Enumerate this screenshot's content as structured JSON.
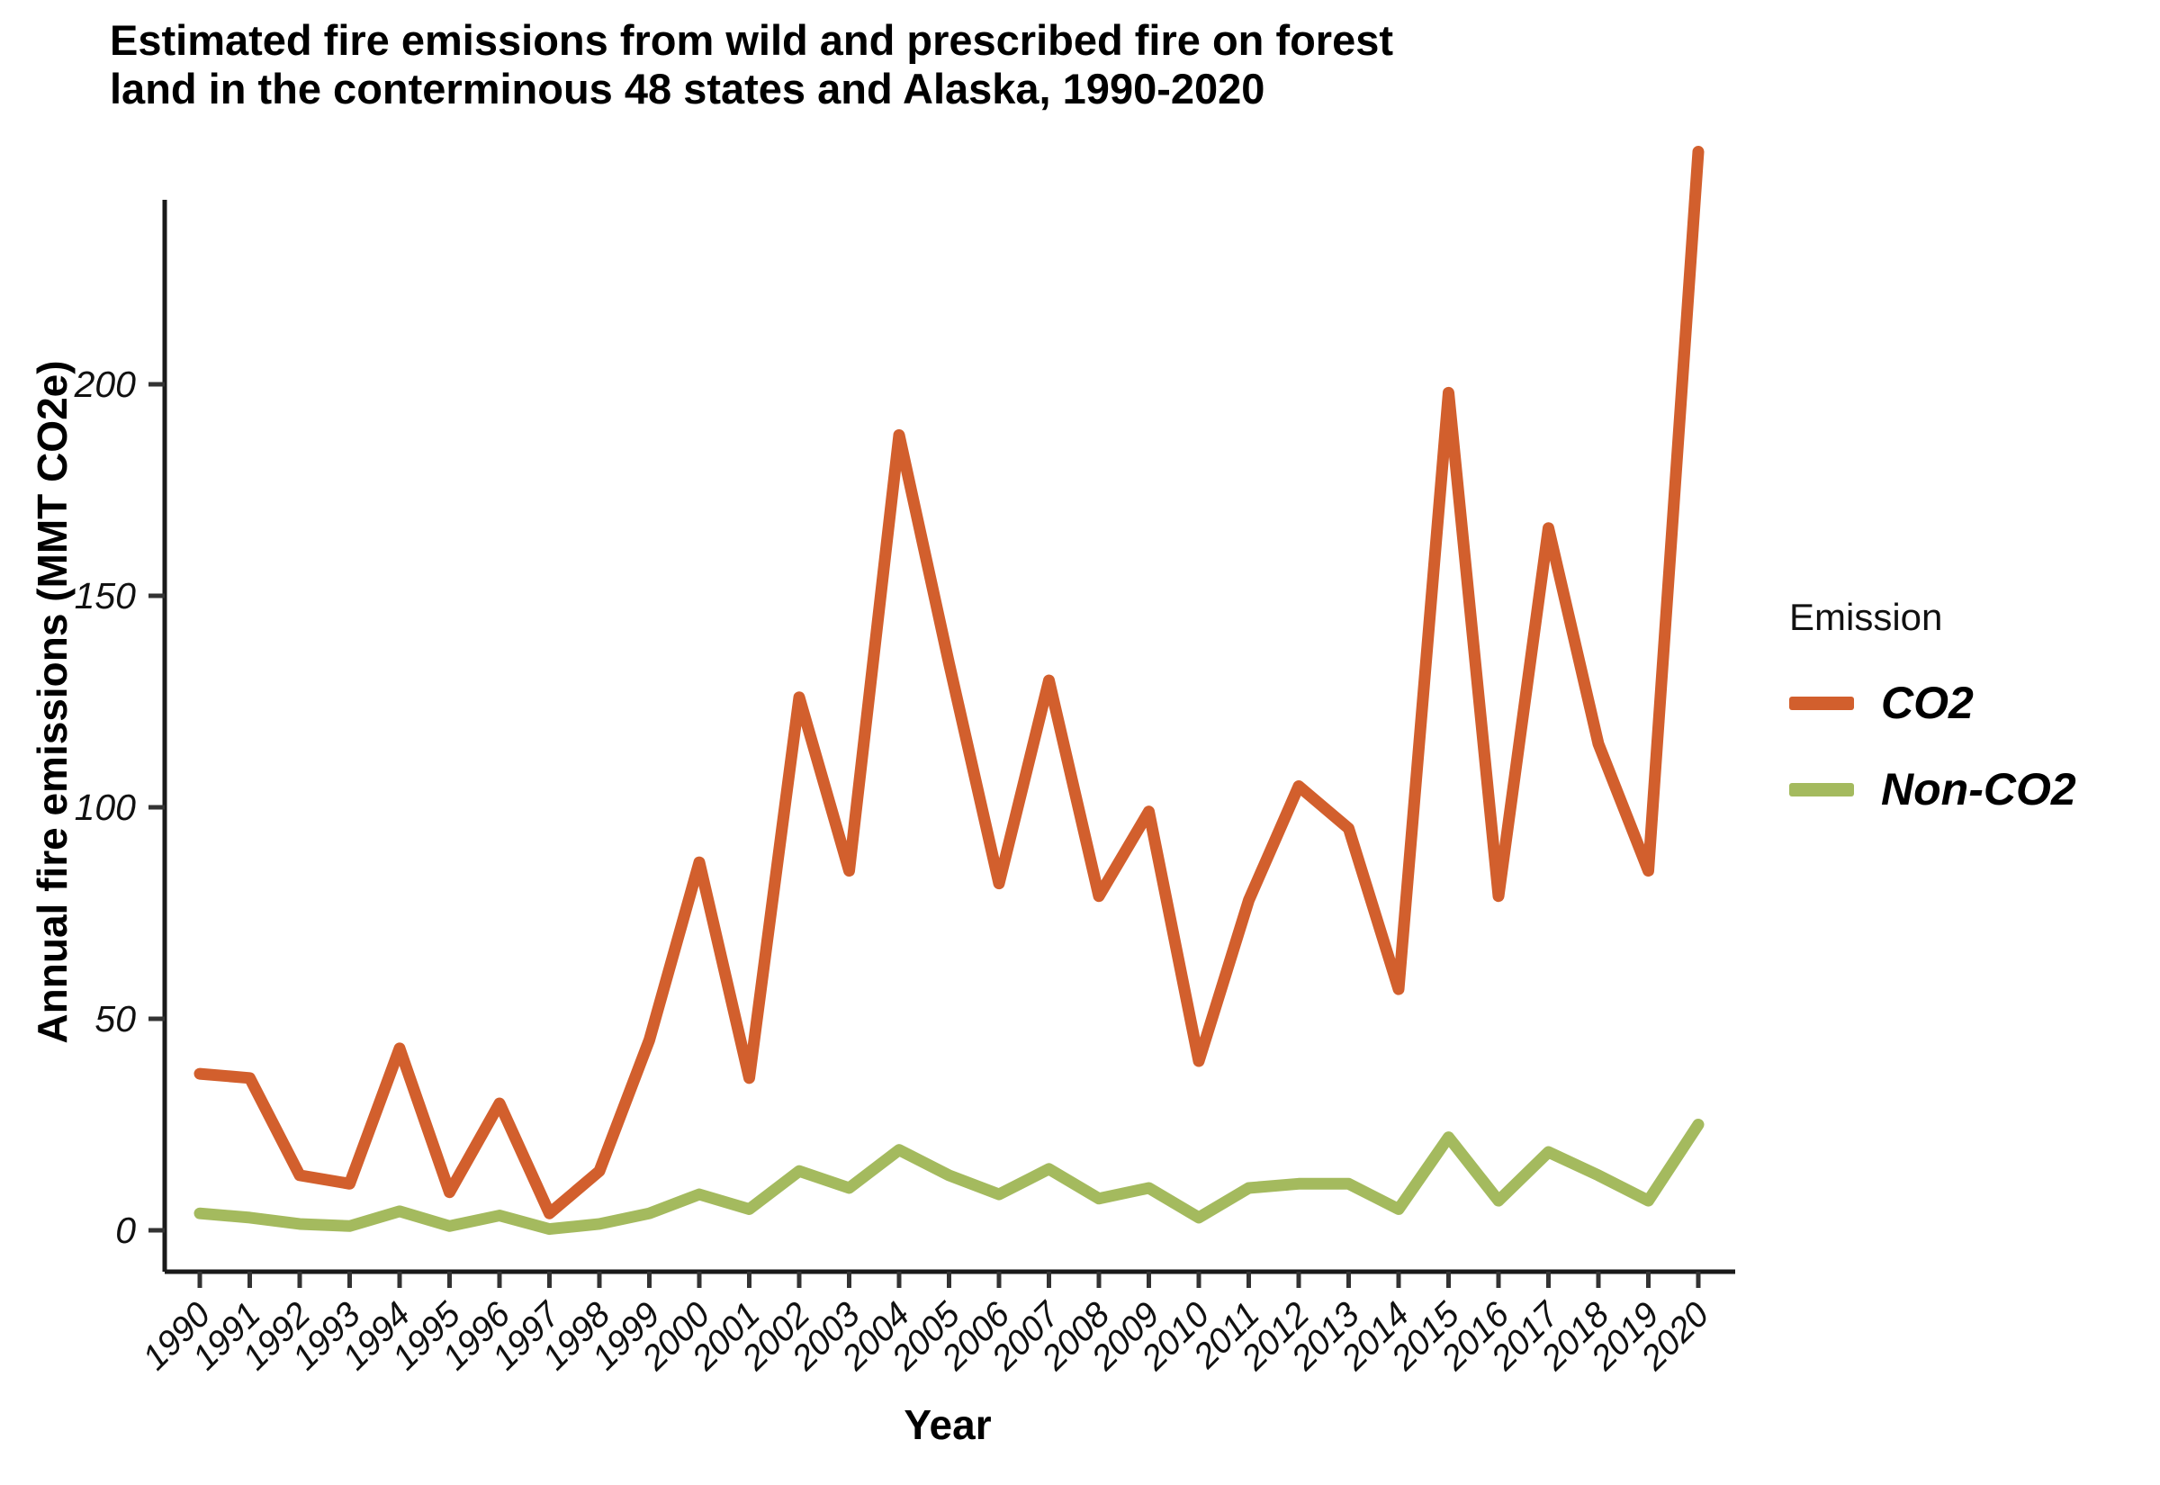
{
  "title": {
    "line1": "Estimated fire emissions from wild and prescribed fire on forest",
    "line2": "land in the conterminous 48 states and Alaska, 1990-2020"
  },
  "axes": {
    "y_label": "Annual fire emissions (MMT CO2e)",
    "x_label": "Year"
  },
  "legend": {
    "title": "Emission",
    "items": [
      {
        "label": "CO2",
        "color": "#D25F2D"
      },
      {
        "label": "Non-CO2",
        "color": "#A4BA5E"
      }
    ]
  },
  "chart_data": {
    "type": "line",
    "title": "Estimated fire emissions from wild and prescribed fire on forest land in the conterminous 48 states and Alaska, 1990-2020",
    "xlabel": "Year",
    "ylabel": "Annual fire emissions (MMT CO2e)",
    "x": [
      1990,
      1991,
      1992,
      1993,
      1994,
      1995,
      1996,
      1997,
      1998,
      1999,
      2000,
      2001,
      2002,
      2003,
      2004,
      2005,
      2006,
      2007,
      2008,
      2009,
      2010,
      2011,
      2012,
      2013,
      2014,
      2015,
      2016,
      2017,
      2018,
      2019,
      2020
    ],
    "series": [
      {
        "name": "CO2",
        "color": "#D25F2D",
        "values": [
          37,
          36,
          13,
          11,
          43,
          9,
          30,
          4,
          14,
          45,
          87,
          36,
          126,
          85,
          188,
          134,
          82,
          130,
          79,
          99,
          40,
          78,
          105,
          95,
          57,
          198,
          79,
          166,
          115,
          85,
          255
        ]
      },
      {
        "name": "Non-CO2",
        "color": "#A4BA5E",
        "values": [
          4,
          3,
          1.5,
          1,
          4.5,
          1,
          3.5,
          0.3,
          1.5,
          4,
          8.5,
          5,
          14,
          10,
          19,
          13,
          8.5,
          14.5,
          7.5,
          10,
          3,
          10,
          11,
          11,
          5,
          22,
          7,
          18.5,
          13,
          7,
          25
        ]
      }
    ],
    "yticks": [
      0,
      50,
      100,
      150,
      200
    ],
    "ylim": [
      -10,
      255
    ],
    "grid": false,
    "legend_position": "right"
  }
}
